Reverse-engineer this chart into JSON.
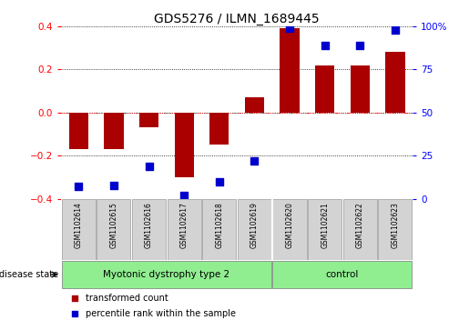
{
  "title": "GDS5276 / ILMN_1689445",
  "samples": [
    "GSM1102614",
    "GSM1102615",
    "GSM1102616",
    "GSM1102617",
    "GSM1102618",
    "GSM1102619",
    "GSM1102620",
    "GSM1102621",
    "GSM1102622",
    "GSM1102623"
  ],
  "red_values": [
    -0.17,
    -0.17,
    -0.07,
    -0.3,
    -0.15,
    0.07,
    0.39,
    0.22,
    0.22,
    0.28
  ],
  "blue_percentiles": [
    7,
    8,
    19,
    2,
    10,
    22,
    99,
    89,
    89,
    98
  ],
  "group1_label": "Myotonic dystrophy type 2",
  "group1_count": 6,
  "group2_label": "control",
  "group2_count": 4,
  "group_color": "#90EE90",
  "sample_box_color": "#D3D3D3",
  "disease_state_label": "disease state",
  "red_color": "#AA0000",
  "blue_color": "#0000CC",
  "ylim_left": [
    -0.4,
    0.4
  ],
  "ylim_right": [
    0,
    100
  ],
  "yticks_left": [
    -0.4,
    -0.2,
    0.0,
    0.2,
    0.4
  ],
  "yticks_right": [
    0,
    25,
    50,
    75,
    100
  ],
  "legend_red": "transformed count",
  "legend_blue": "percentile rank within the sample",
  "bar_width": 0.55,
  "dot_size": 28,
  "title_fontsize": 10
}
